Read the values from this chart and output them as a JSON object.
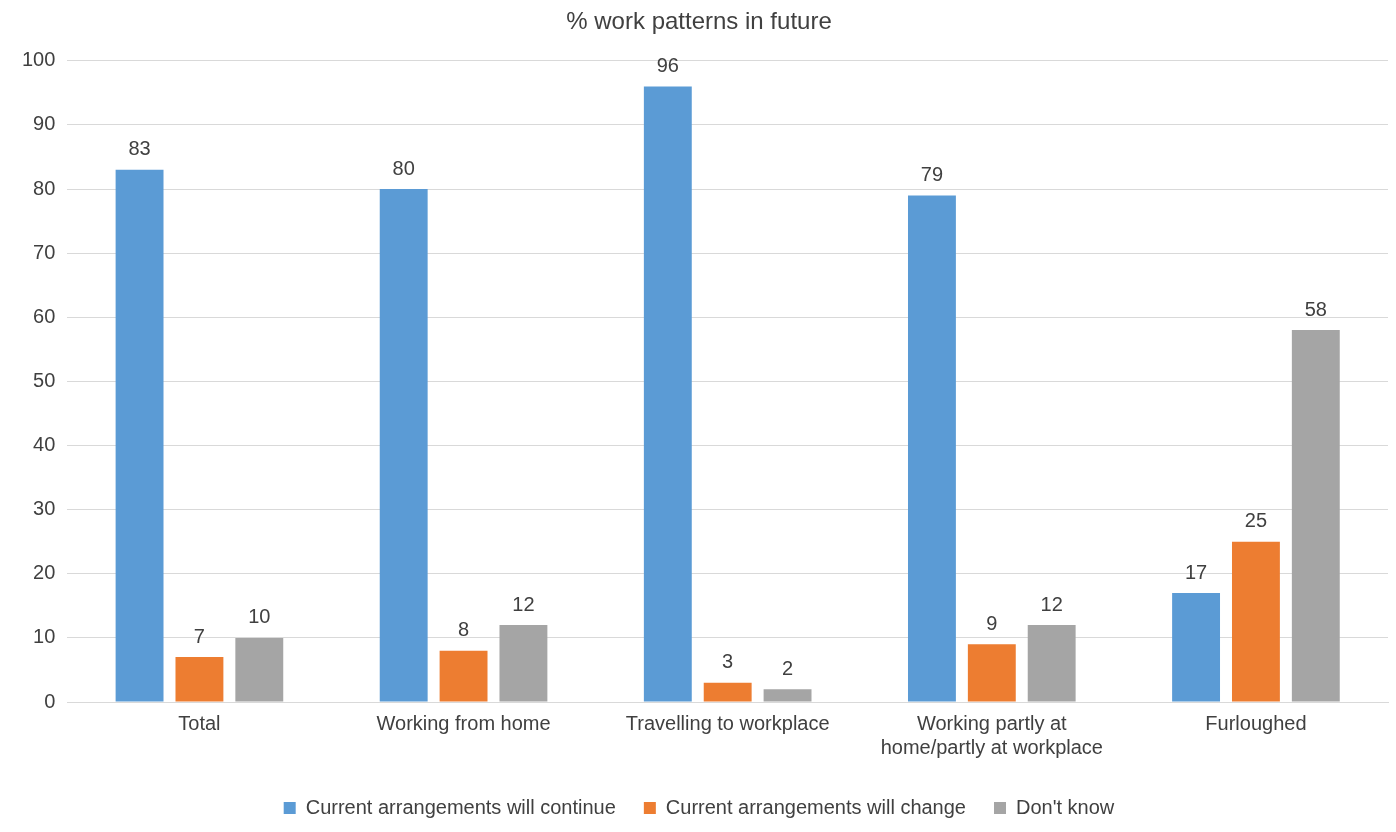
{
  "chart_data": {
    "type": "bar",
    "title": "% work patterns in future",
    "categories": [
      "Total",
      "Working from home",
      "Travelling to workplace",
      "Working partly at home/partly at workplace",
      "Furloughed"
    ],
    "series": [
      {
        "name": "Current arrangements will continue",
        "color": "#5b9bd5",
        "values": [
          83,
          80,
          96,
          79,
          17
        ]
      },
      {
        "name": "Current arrangements will change",
        "color": "#ed7d31",
        "values": [
          7,
          8,
          3,
          9,
          25
        ]
      },
      {
        "name": "Don't know",
        "color": "#a5a5a5",
        "values": [
          10,
          12,
          2,
          12,
          58
        ]
      }
    ],
    "ylim": [
      0,
      100
    ],
    "yticks": [
      0,
      10,
      20,
      30,
      40,
      50,
      60,
      70,
      80,
      90,
      100
    ],
    "grid": "y",
    "legend": "bottom",
    "data_labels": true
  }
}
